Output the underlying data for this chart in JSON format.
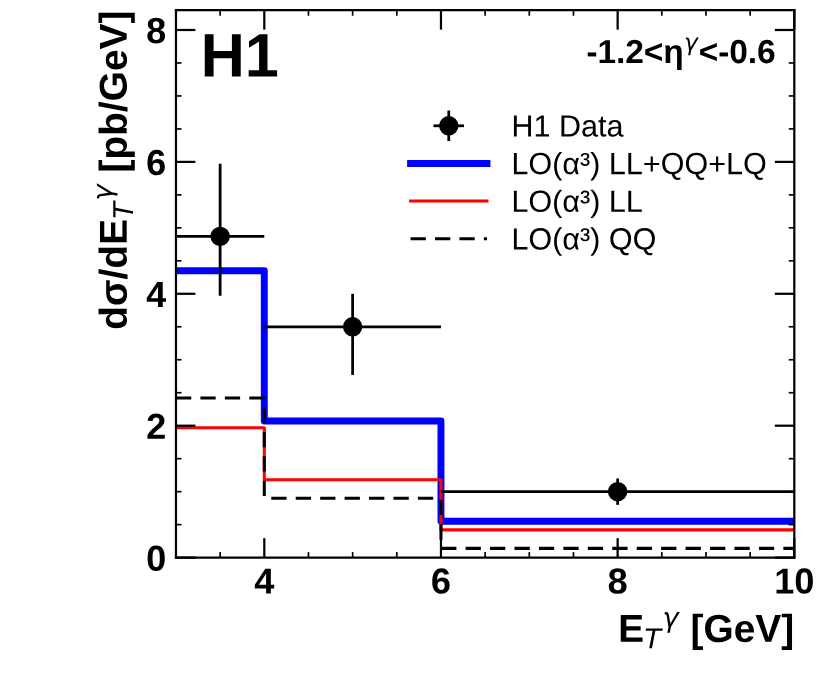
{
  "chart_data": {
    "type": "histogram",
    "xlabel": "E$_{T}$$^{γ}$ [GeV]",
    "ylabel": "dσ/dE$_{T}$$^{γ}$ [pb/GeV]",
    "annotations": [
      "H1",
      "-1.2<η$^{γ}$<-0.6"
    ],
    "bins": [
      3,
      4,
      6,
      10
    ],
    "series": [
      {
        "name": "H1 Data",
        "type": "scatter",
        "color": "#000000",
        "x": [
          3.5,
          5,
          8
        ],
        "values": [
          4.87,
          3.5,
          1.0
        ],
        "errors": [
          [
            3.97,
            5.97
          ],
          [
            2.77,
            4.0
          ],
          [
            0.8,
            1.2
          ]
        ],
        "xerrors": [
          0.5,
          1,
          2
        ],
        "marker": "circle"
      },
      {
        "name": "LO(α³) LL+QQ+LQ",
        "color": "#0000ff",
        "values": [
          4.35,
          2.07,
          0.55
        ],
        "line_style": "solid"
      },
      {
        "name": "LO(α³) LL",
        "color": "#ff0000",
        "values": [
          1.97,
          1.18,
          0.42
        ],
        "line_style": "solid"
      },
      {
        "name": "LO(α³) QQ",
        "color": "#000000",
        "values": [
          2.42,
          0.9,
          0.14
        ],
        "line_style": "dashed"
      }
    ],
    "xlim": [
      3,
      10
    ],
    "ylim": [
      0,
      8.3
    ],
    "xticks": [
      4,
      6,
      8,
      10
    ],
    "yticks": [
      0,
      2,
      4,
      6,
      8
    ],
    "legend": "top right",
    "grid": false
  }
}
